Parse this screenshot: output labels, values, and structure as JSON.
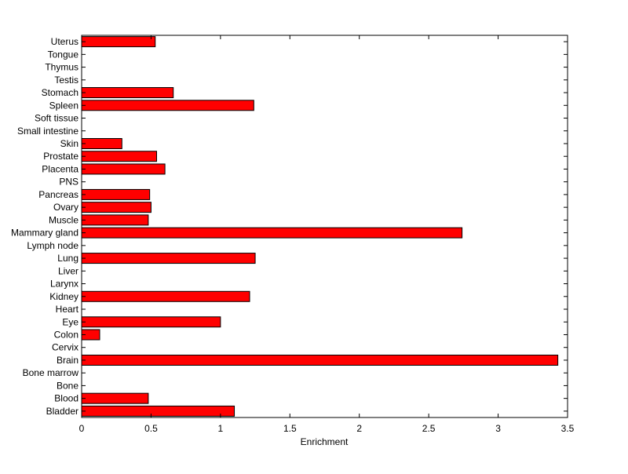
{
  "chart_data": {
    "type": "bar",
    "orientation": "horizontal",
    "title": "",
    "xlabel": "Enrichment",
    "ylabel": "",
    "xlim": [
      0,
      3.5
    ],
    "xticks": [
      "0",
      "0.5",
      "1",
      "1.5",
      "2",
      "2.5",
      "3",
      "3.5"
    ],
    "grid": false,
    "bar_color": "#ff0000",
    "categories": [
      "Bladder",
      "Blood",
      "Bone",
      "Bone marrow",
      "Brain",
      "Cervix",
      "Colon",
      "Eye",
      "Heart",
      "Kidney",
      "Larynx",
      "Liver",
      "Lung",
      "Lymph node",
      "Mammary gland",
      "Muscle",
      "Ovary",
      "Pancreas",
      "PNS",
      "Placenta",
      "Prostate",
      "Skin",
      "Small intestine",
      "Soft tissue",
      "Spleen",
      "Stomach",
      "Testis",
      "Thymus",
      "Tongue",
      "Uterus"
    ],
    "values": [
      1.1,
      0.48,
      0,
      0,
      3.43,
      0,
      0.13,
      1.0,
      0,
      1.21,
      0,
      0,
      1.25,
      0,
      2.74,
      0.48,
      0.5,
      0.49,
      0,
      0.6,
      0.54,
      0.29,
      0,
      0,
      1.24,
      0.66,
      0,
      0,
      0,
      0.53
    ]
  }
}
